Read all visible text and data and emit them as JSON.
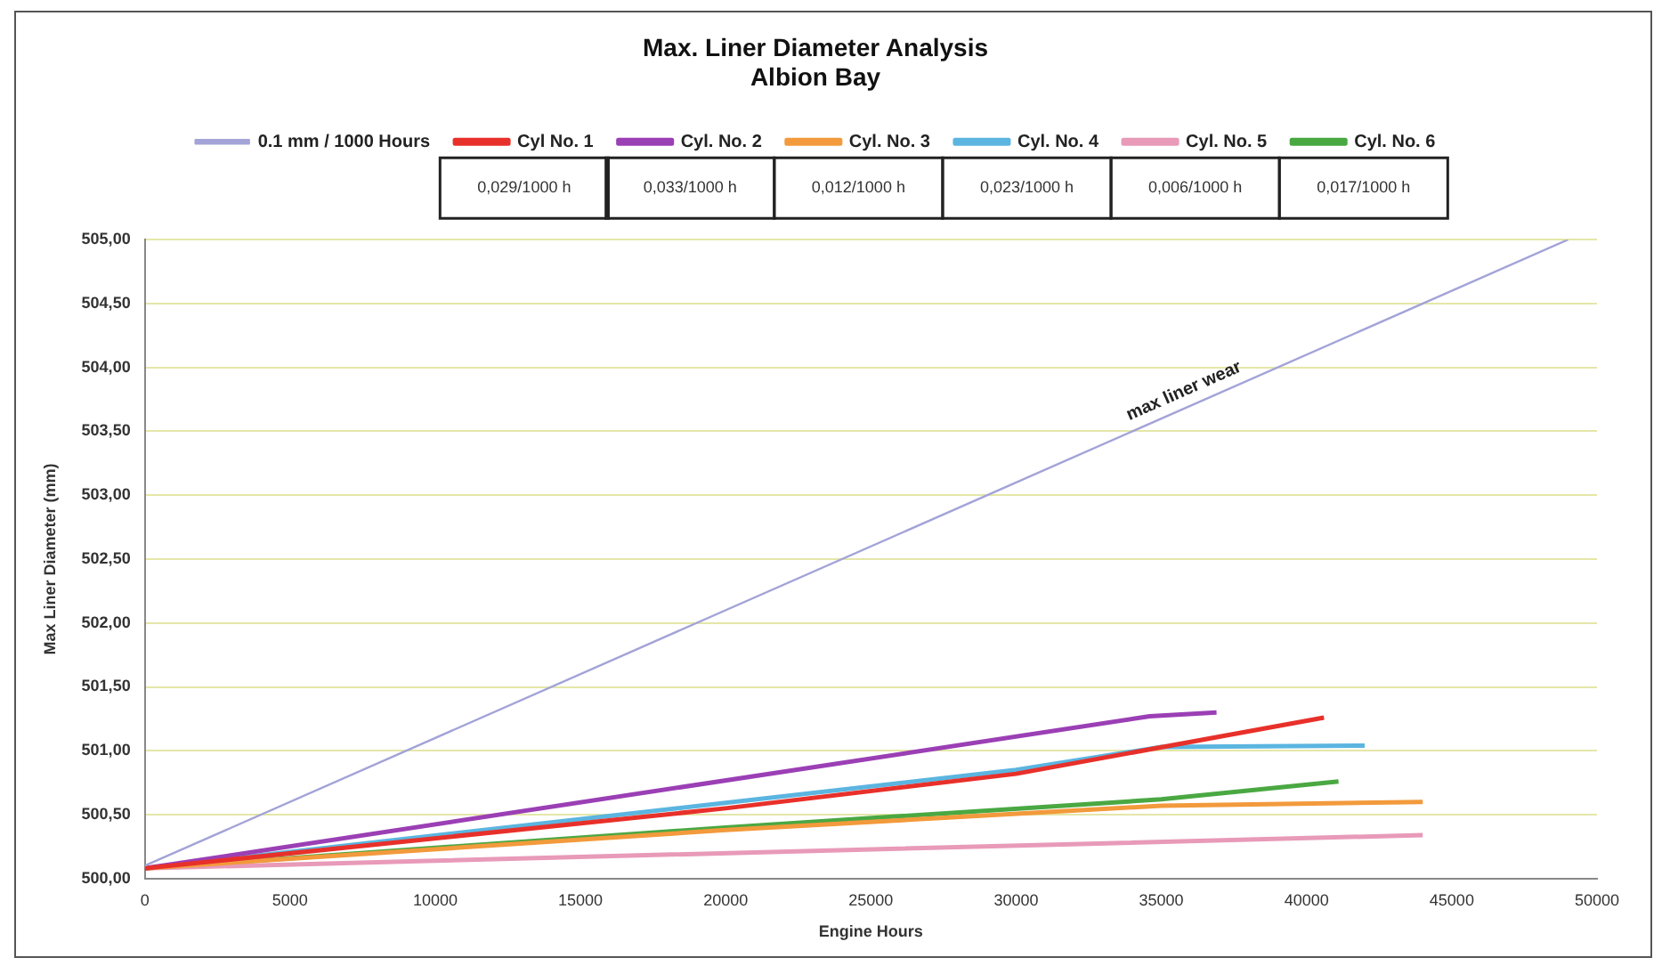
{
  "chart_data": {
    "type": "line",
    "title": "Max. Liner Diameter Analysis",
    "subtitle": "Albion Bay",
    "xlabel": "Engine Hours",
    "ylabel": "Max Liner Diameter (mm)",
    "xlim": [
      0,
      50000
    ],
    "xticks": [
      0,
      5000,
      10000,
      15000,
      20000,
      25000,
      30000,
      35000,
      40000,
      45000,
      50000
    ],
    "ylim": [
      500,
      505
    ],
    "yticks": [
      {
        "value": 500,
        "label": "500,00"
      },
      {
        "value": 500.5,
        "label": "500,50"
      },
      {
        "value": 501,
        "label": "501,00"
      },
      {
        "value": 501.5,
        "label": "501,50"
      },
      {
        "value": 502,
        "label": "502,00"
      },
      {
        "value": 502.5,
        "label": "502,50"
      },
      {
        "value": 503,
        "label": "503,00"
      },
      {
        "value": 503.5,
        "label": "503,50"
      },
      {
        "value": 504,
        "label": "504,00"
      },
      {
        "value": 504.5,
        "label": "504,50"
      },
      {
        "value": 505,
        "label": "505,00"
      }
    ],
    "grid": "y",
    "legend": "top",
    "marker": "none",
    "line_style": "solid",
    "series": [
      {
        "name": "0.1 mm / 1000 Hours",
        "color": "#a3a3d8",
        "x": [
          0,
          49000
        ],
        "values": [
          500.1,
          505.0
        ]
      },
      {
        "name": "Cyl No. 1",
        "color": "#e8302a",
        "x": [
          0,
          20000,
          30000,
          40600
        ],
        "values": [
          500.08,
          500.55,
          500.82,
          501.26
        ]
      },
      {
        "name": "Cyl. No. 2",
        "color": "#9b3fb5",
        "x": [
          0,
          34600,
          36900
        ],
        "values": [
          500.08,
          501.27,
          501.3
        ]
      },
      {
        "name": "Cyl. No. 3",
        "color": "#f29a3c",
        "x": [
          0,
          20000,
          35000,
          44000
        ],
        "values": [
          500.08,
          500.38,
          500.57,
          500.6
        ]
      },
      {
        "name": "Cyl. No. 4",
        "color": "#5bb5e0",
        "x": [
          0,
          30000,
          35000,
          42000
        ],
        "values": [
          500.08,
          500.85,
          501.03,
          501.04
        ]
      },
      {
        "name": "Cyl. No. 5",
        "color": "#e89ab8",
        "x": [
          0,
          10000,
          44000
        ],
        "values": [
          500.08,
          500.14,
          500.34
        ]
      },
      {
        "name": "Cyl. No. 6",
        "color": "#4aa842",
        "x": [
          0,
          20000,
          35000,
          41100
        ],
        "values": [
          500.08,
          500.4,
          500.62,
          500.76
        ]
      }
    ],
    "annotations": [
      {
        "text": "max liner wear",
        "x": 36000,
        "y": 503.7
      },
      "0,029/1000 h",
      "0,033/1000 h",
      "0,012/1000 h",
      "0,023/1000 h",
      "0,006/1000 h",
      "0,017/1000 h"
    ]
  }
}
